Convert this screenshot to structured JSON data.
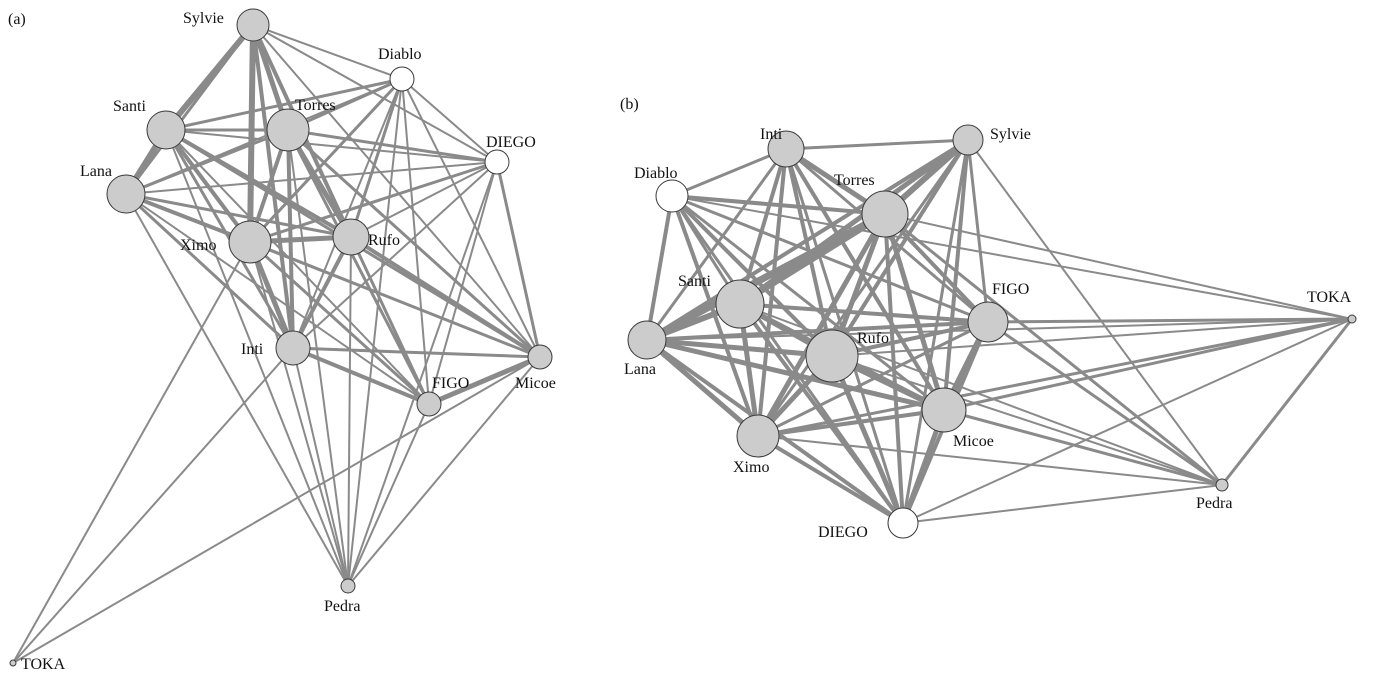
{
  "colors": {
    "edge": "#8a8a8a",
    "node_fill": "#cccccc",
    "node_fill_open": "#ffffff",
    "node_stroke": "#3a3a3a",
    "text": "#111111"
  },
  "panels": [
    {
      "label": "(a)",
      "nodes": [
        {
          "id": "Sylvie",
          "label": "Sylvie",
          "fill": "grey"
        },
        {
          "id": "Diablo",
          "label": "Diablo",
          "fill": "white"
        },
        {
          "id": "Santi",
          "label": "Santi",
          "fill": "grey"
        },
        {
          "id": "Torres",
          "label": "Torres",
          "fill": "grey"
        },
        {
          "id": "DIEGO",
          "label": "DIEGO",
          "fill": "white"
        },
        {
          "id": "Lana",
          "label": "Lana",
          "fill": "grey"
        },
        {
          "id": "Ximo",
          "label": "Ximo",
          "fill": "grey"
        },
        {
          "id": "Rufo",
          "label": "Rufo",
          "fill": "grey"
        },
        {
          "id": "Inti",
          "label": "Inti",
          "fill": "grey"
        },
        {
          "id": "Micoe",
          "label": "Micoe",
          "fill": "grey"
        },
        {
          "id": "FIGO",
          "label": "FIGO",
          "fill": "grey"
        },
        {
          "id": "Pedra",
          "label": "Pedra",
          "fill": "grey"
        },
        {
          "id": "TOKA",
          "label": "TOKA",
          "fill": "grey"
        }
      ]
    },
    {
      "label": "(b)",
      "nodes": [
        {
          "id": "Inti",
          "label": "Inti",
          "fill": "grey"
        },
        {
          "id": "Sylvie",
          "label": "Sylvie",
          "fill": "grey"
        },
        {
          "id": "Diablo",
          "label": "Diablo",
          "fill": "white"
        },
        {
          "id": "Torres",
          "label": "Torres",
          "fill": "grey"
        },
        {
          "id": "Santi",
          "label": "Santi",
          "fill": "grey"
        },
        {
          "id": "FIGO",
          "label": "FIGO",
          "fill": "grey"
        },
        {
          "id": "TOKA",
          "label": "TOKA",
          "fill": "grey"
        },
        {
          "id": "Lana",
          "label": "Lana",
          "fill": "grey"
        },
        {
          "id": "Rufo",
          "label": "Rufo",
          "fill": "grey"
        },
        {
          "id": "Micoe",
          "label": "Micoe",
          "fill": "grey"
        },
        {
          "id": "Ximo",
          "label": "Ximo",
          "fill": "grey"
        },
        {
          "id": "Pedra",
          "label": "Pedra",
          "fill": "grey"
        },
        {
          "id": "DIEGO",
          "label": "DIEGO",
          "fill": "white"
        }
      ]
    }
  ]
}
